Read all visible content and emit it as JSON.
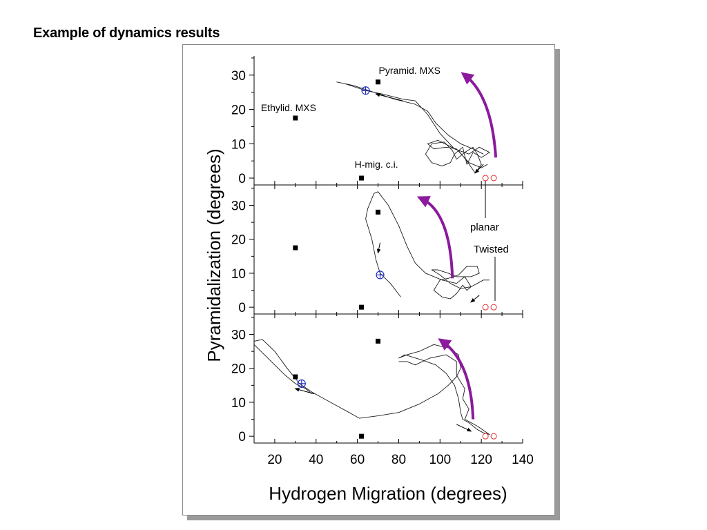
{
  "slide": {
    "title": "Example of dynamics results"
  },
  "chart_data": {
    "type": "line",
    "xlabel": "Hydrogen Migration (degrees)",
    "ylabel": "Pyramidalization (degrees)",
    "xlim": [
      10,
      140
    ],
    "ylim": [
      -2,
      36
    ],
    "xticks": [
      20,
      40,
      60,
      80,
      100,
      120,
      140
    ],
    "yticks": [
      0,
      10,
      20,
      30
    ],
    "grid": false,
    "legend": "none",
    "colors": {
      "trajectory": "#1a1a1a",
      "reference_point": "#000000",
      "start_marker": "#e03030",
      "end_marker": "#2030c0",
      "direction_arrow": "#8b1a9e"
    },
    "reference_points": [
      {
        "x": 30,
        "y": 17.5,
        "label": "Ethylid. MXS"
      },
      {
        "x": 70,
        "y": 28,
        "label": "Pyramid. MXS"
      },
      {
        "x": 62,
        "y": 0,
        "label": "H-mig. c.i."
      }
    ],
    "start_points_annotations": [
      "planar",
      "Twisted"
    ],
    "panels": [
      {
        "start_points": [
          [
            122,
            0
          ],
          [
            126,
            0
          ]
        ],
        "end_point": [
          64,
          25.5
        ],
        "trajectory": [
          [
            121,
            7
          ],
          [
            116,
            8.5
          ],
          [
            110,
            10
          ],
          [
            104,
            12.5
          ],
          [
            98,
            16
          ],
          [
            94,
            19.5
          ],
          [
            88,
            21.5
          ],
          [
            78,
            23
          ],
          [
            68,
            25
          ],
          [
            58,
            27
          ],
          [
            54,
            27.5
          ],
          [
            50,
            28
          ],
          [
            54,
            27.5
          ],
          [
            64,
            25.5
          ],
          [
            72,
            24.5
          ],
          [
            82,
            23
          ],
          [
            88,
            22.5
          ],
          [
            94,
            18.5
          ],
          [
            100,
            13
          ],
          [
            107,
            8.5
          ],
          [
            114,
            7
          ],
          [
            119,
            9
          ],
          [
            124,
            7.5
          ],
          [
            120,
            6
          ],
          [
            116,
            7.5
          ],
          [
            113,
            4
          ],
          [
            111,
            9
          ],
          [
            107,
            7
          ],
          [
            105,
            4.5
          ],
          [
            101,
            3.5
          ],
          [
            96,
            4.5
          ],
          [
            93,
            7
          ],
          [
            96,
            10
          ],
          [
            102,
            10.5
          ],
          [
            106,
            8
          ],
          [
            108,
            5.5
          ],
          [
            112,
            7.5
          ],
          [
            116,
            9
          ],
          [
            118,
            7
          ],
          [
            120,
            4
          ],
          [
            117,
            1.5
          ],
          [
            113,
            5
          ],
          [
            109,
            8
          ],
          [
            104,
            9.5
          ],
          [
            99,
            11
          ],
          [
            94,
            10
          ],
          [
            97,
            8.5
          ],
          [
            103,
            9
          ],
          [
            108,
            8.5
          ],
          [
            114,
            4.5
          ],
          [
            120,
            3
          ],
          [
            123,
            4
          ]
        ],
        "small_arrows": [
          {
            "x1": 82,
            "y1": 22.5,
            "x2": 69,
            "y2": 24.5
          },
          {
            "x1": 121,
            "y1": 4,
            "x2": 117,
            "y2": 1.5
          }
        ],
        "direction_arrow": {
          "start": [
            127,
            6
          ],
          "control": [
            125,
            24
          ],
          "end": [
            112,
            30
          ]
        }
      },
      {
        "start_points": [
          [
            122,
            0
          ],
          [
            126,
            0
          ]
        ],
        "end_point": [
          71,
          9.5
        ],
        "trajectory": [
          [
            81,
            3
          ],
          [
            76,
            7
          ],
          [
            71,
            10
          ],
          [
            69,
            14
          ],
          [
            67,
            20
          ],
          [
            64,
            26
          ],
          [
            65,
            29
          ],
          [
            68,
            33.5
          ],
          [
            70,
            34
          ],
          [
            75,
            30
          ],
          [
            80,
            24
          ],
          [
            84,
            18
          ],
          [
            88,
            13
          ],
          [
            93,
            10
          ],
          [
            101,
            8
          ],
          [
            108,
            7
          ],
          [
            112,
            9
          ],
          [
            115,
            6
          ],
          [
            113,
            5
          ],
          [
            111,
            6.5
          ],
          [
            108,
            4
          ],
          [
            105,
            2.5
          ],
          [
            101,
            3
          ],
          [
            97,
            5
          ],
          [
            100,
            8
          ],
          [
            104,
            8.5
          ],
          [
            109,
            9.5
          ],
          [
            113,
            12
          ],
          [
            118,
            12
          ],
          [
            119,
            10
          ],
          [
            115,
            9
          ],
          [
            112,
            9
          ],
          [
            108,
            9
          ],
          [
            104,
            10
          ],
          [
            99,
            11
          ],
          [
            96,
            11
          ],
          [
            100,
            9.5
          ],
          [
            105,
            7
          ],
          [
            110,
            5.5
          ],
          [
            115,
            6
          ],
          [
            118,
            7
          ],
          [
            121,
            8
          ],
          [
            124,
            8
          ]
        ],
        "small_arrows": [
          {
            "x1": 71,
            "y1": 19,
            "x2": 70,
            "y2": 16
          },
          {
            "x1": 119,
            "y1": 3.5,
            "x2": 115,
            "y2": 1.5
          }
        ],
        "direction_arrow": {
          "start": [
            106,
            8.5
          ],
          "control": [
            105,
            28
          ],
          "end": [
            91,
            32
          ]
        }
      },
      {
        "start_points": [
          [
            122,
            0
          ],
          [
            126,
            0
          ]
        ],
        "end_point": [
          33,
          15.5
        ],
        "trajectory": [
          [
            10,
            28
          ],
          [
            14,
            28.5
          ],
          [
            20,
            25
          ],
          [
            26,
            20
          ],
          [
            32,
            15.5
          ],
          [
            38,
            13
          ],
          [
            44,
            11
          ],
          [
            50,
            9
          ],
          [
            56,
            7
          ],
          [
            61,
            5.3
          ],
          [
            70,
            6
          ],
          [
            80,
            7
          ],
          [
            90,
            9.5
          ],
          [
            99,
            12.5
          ],
          [
            104,
            15
          ],
          [
            108,
            17.5
          ],
          [
            110,
            20
          ],
          [
            109,
            24
          ],
          [
            104,
            26
          ],
          [
            97,
            27
          ],
          [
            90,
            25
          ],
          [
            84,
            24
          ],
          [
            80,
            23
          ],
          [
            83,
            24
          ],
          [
            91,
            22.5
          ],
          [
            98,
            21
          ],
          [
            103,
            18.5
          ],
          [
            107,
            15
          ],
          [
            109,
            11
          ],
          [
            110,
            7
          ],
          [
            111,
            5
          ],
          [
            114,
            4
          ],
          [
            118,
            2
          ],
          [
            121,
            1
          ],
          [
            124,
            0.5
          ],
          [
            118,
            3
          ],
          [
            112,
            5
          ],
          [
            114,
            8
          ],
          [
            111,
            11
          ],
          [
            112,
            14
          ],
          [
            108,
            18
          ],
          [
            108,
            22
          ],
          [
            103,
            24
          ],
          [
            95,
            23
          ],
          [
            88,
            21
          ],
          [
            84,
            22
          ],
          [
            80,
            22
          ]
        ],
        "extra_trajectory": [
          [
            10,
            27
          ],
          [
            15,
            24
          ],
          [
            20,
            21
          ],
          [
            25,
            18
          ],
          [
            30,
            15.5
          ],
          [
            35,
            14
          ],
          [
            38,
            12.5
          ]
        ],
        "small_arrows": [
          {
            "x1": 39,
            "y1": 12.5,
            "x2": 30,
            "y2": 14
          },
          {
            "x1": 108,
            "y1": 3.5,
            "x2": 115,
            "y2": 1.5
          }
        ],
        "direction_arrow": {
          "start": [
            116,
            5
          ],
          "control": [
            115,
            22
          ],
          "end": [
            101,
            28
          ]
        }
      }
    ]
  }
}
